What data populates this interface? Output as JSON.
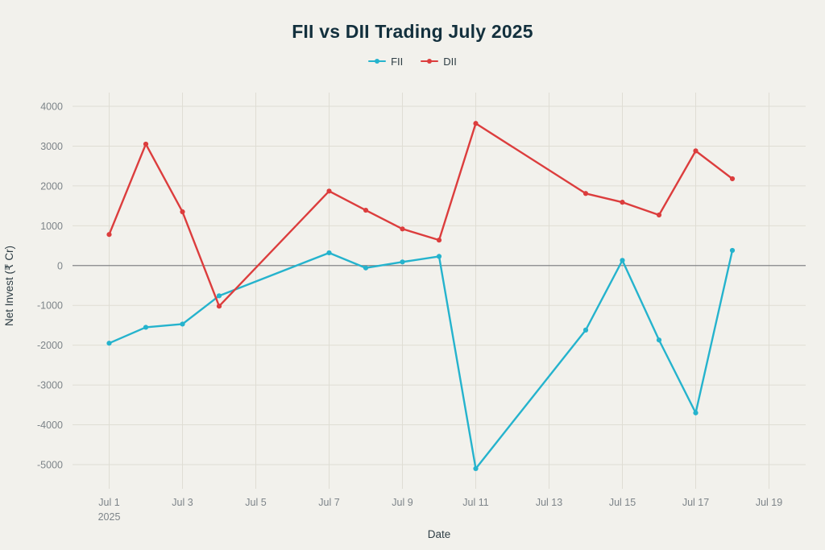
{
  "chart_data": {
    "type": "line",
    "title": "FII vs DII Trading July 2025",
    "xlabel": "Date",
    "ylabel": "Net Invest (₹ Cr)",
    "x_days": [
      1,
      2,
      3,
      4,
      7,
      8,
      9,
      10,
      11,
      14,
      15,
      16,
      17,
      18
    ],
    "series": [
      {
        "name": "FII",
        "color": "#25b3cd",
        "values": [
          -1950,
          -1550,
          -1470,
          -760,
          320,
          -60,
          90,
          230,
          -5100,
          -1620,
          130,
          -1870,
          -3700,
          380
        ]
      },
      {
        "name": "DII",
        "color": "#dc3d3d",
        "values": [
          780,
          3050,
          1350,
          -1020,
          1870,
          1390,
          920,
          640,
          3570,
          1810,
          1590,
          1270,
          2880,
          2180
        ]
      }
    ],
    "x_ticks": [
      {
        "day": 1,
        "label": "Jul 1",
        "sublabel": "2025"
      },
      {
        "day": 3,
        "label": "Jul 3"
      },
      {
        "day": 5,
        "label": "Jul 5"
      },
      {
        "day": 7,
        "label": "Jul 7"
      },
      {
        "day": 9,
        "label": "Jul 9"
      },
      {
        "day": 11,
        "label": "Jul 11"
      },
      {
        "day": 13,
        "label": "Jul 13"
      },
      {
        "day": 15,
        "label": "Jul 15"
      },
      {
        "day": 17,
        "label": "Jul 17"
      },
      {
        "day": 19,
        "label": "Jul 19"
      }
    ],
    "y_ticks": [
      4000,
      3000,
      2000,
      1000,
      0,
      -1000,
      -2000,
      -3000,
      -4000,
      -5000
    ],
    "ylim": [
      -5000,
      4000
    ],
    "x_domain": [
      0,
      20
    ],
    "grid": true,
    "zero_line": true,
    "legend_position": "top-center"
  },
  "colors": {
    "background": "#f2f1ec",
    "grid": "#dfddd4",
    "zero_line": "#85868a",
    "tick_text": "#7d8489",
    "title_text": "#13303d",
    "axis_label_text": "#2f3e45"
  }
}
